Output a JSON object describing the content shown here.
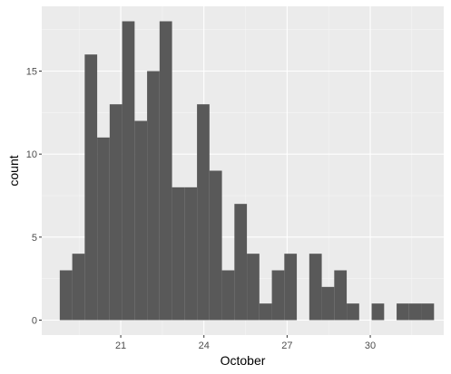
{
  "chart_data": {
    "type": "bar",
    "subtype": "histogram",
    "title": "",
    "xlabel": "October",
    "ylabel": "count",
    "xlim": [
      18.15,
      32.65
    ],
    "ylim": [
      -0.9,
      18.9
    ],
    "x_ticks": [
      21,
      24,
      27,
      30
    ],
    "x_tick_labels": [
      "21",
      "24",
      "27",
      "30"
    ],
    "y_ticks": [
      0,
      5,
      10,
      15
    ],
    "y_tick_labels": [
      "0",
      "5",
      "10",
      "15"
    ],
    "bin_width": 0.45,
    "bins": [
      {
        "x_start": 18.8,
        "x_end": 19.25,
        "count": 3
      },
      {
        "x_start": 19.25,
        "x_end": 19.7,
        "count": 4
      },
      {
        "x_start": 19.7,
        "x_end": 20.15,
        "count": 16
      },
      {
        "x_start": 20.15,
        "x_end": 20.6,
        "count": 11
      },
      {
        "x_start": 20.6,
        "x_end": 21.05,
        "count": 13
      },
      {
        "x_start": 21.05,
        "x_end": 21.5,
        "count": 18
      },
      {
        "x_start": 21.5,
        "x_end": 21.95,
        "count": 12
      },
      {
        "x_start": 21.95,
        "x_end": 22.4,
        "count": 15
      },
      {
        "x_start": 22.4,
        "x_end": 22.85,
        "count": 18
      },
      {
        "x_start": 22.85,
        "x_end": 23.3,
        "count": 8
      },
      {
        "x_start": 23.3,
        "x_end": 23.75,
        "count": 8
      },
      {
        "x_start": 23.75,
        "x_end": 24.2,
        "count": 13
      },
      {
        "x_start": 24.2,
        "x_end": 24.65,
        "count": 9
      },
      {
        "x_start": 24.65,
        "x_end": 25.1,
        "count": 3
      },
      {
        "x_start": 25.1,
        "x_end": 25.55,
        "count": 7
      },
      {
        "x_start": 25.55,
        "x_end": 26.0,
        "count": 4
      },
      {
        "x_start": 26.0,
        "x_end": 26.45,
        "count": 1
      },
      {
        "x_start": 26.45,
        "x_end": 26.9,
        "count": 3
      },
      {
        "x_start": 26.9,
        "x_end": 27.35,
        "count": 4
      },
      {
        "x_start": 27.35,
        "x_end": 27.8,
        "count": 0
      },
      {
        "x_start": 27.8,
        "x_end": 28.25,
        "count": 4
      },
      {
        "x_start": 28.25,
        "x_end": 28.7,
        "count": 2
      },
      {
        "x_start": 28.7,
        "x_end": 29.15,
        "count": 3
      },
      {
        "x_start": 29.15,
        "x_end": 29.6,
        "count": 1
      },
      {
        "x_start": 29.6,
        "x_end": 30.05,
        "count": 0
      },
      {
        "x_start": 30.05,
        "x_end": 30.5,
        "count": 1
      },
      {
        "x_start": 30.5,
        "x_end": 30.95,
        "count": 0
      },
      {
        "x_start": 30.95,
        "x_end": 31.4,
        "count": 1
      },
      {
        "x_start": 31.4,
        "x_end": 31.85,
        "count": 1
      },
      {
        "x_start": 31.85,
        "x_end": 32.3,
        "count": 1
      }
    ],
    "grid": true,
    "legend": "none",
    "colors": {
      "bar_fill": "#595959",
      "panel_background": "#ebebeb",
      "grid_major": "#ffffff",
      "grid_minor": "#f5f5f5",
      "tick_text": "#4d4d4d",
      "axis_tick": "#333333",
      "axis_title": "#000000",
      "page_background": "#ffffff"
    }
  }
}
